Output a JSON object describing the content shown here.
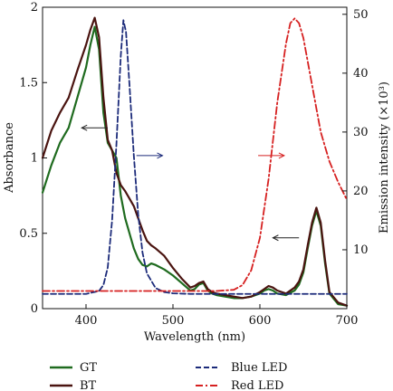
{
  "chart_data": {
    "type": "line",
    "title": "",
    "xlabel": "Wavelength (nm)",
    "ylabel_left": "Absorbance",
    "ylabel_right": "Emission intensity (×10³)",
    "xlim": [
      350,
      700
    ],
    "ylim_left": [
      0,
      2
    ],
    "ylim_right": [
      0,
      51.2
    ],
    "x_ticks": [
      400,
      500,
      600,
      700
    ],
    "y_left_ticks": [
      {
        "value": 0,
        "label": "0"
      },
      {
        "value": 0.5,
        "label": "0.5"
      },
      {
        "value": 1,
        "label": "1"
      },
      {
        "value": 1.5,
        "label": "1.5"
      },
      {
        "value": 2,
        "label": "2"
      }
    ],
    "y_right_ticks": [
      {
        "value": 10,
        "label": "10"
      },
      {
        "value": 20,
        "label": "20"
      },
      {
        "value": 30,
        "label": "30"
      },
      {
        "value": 40,
        "label": "40"
      },
      {
        "value": 50,
        "label": "50"
      }
    ],
    "legend_placement": "bottom",
    "grid": false,
    "series": [
      {
        "name": "GT",
        "axis": "left",
        "color": "#1f6b1f",
        "dash": "solid",
        "x": [
          350,
          360,
          370,
          380,
          390,
          400,
          405,
          410,
          415,
          420,
          425,
          430,
          435,
          440,
          445,
          450,
          455,
          460,
          465,
          470,
          475,
          480,
          490,
          500,
          510,
          520,
          525,
          530,
          535,
          540,
          545,
          550,
          560,
          570,
          580,
          590,
          600,
          605,
          610,
          615,
          620,
          630,
          640,
          645,
          650,
          655,
          660,
          665,
          670,
          675,
          680,
          690,
          700
        ],
        "y": [
          0.77,
          0.95,
          1.1,
          1.2,
          1.4,
          1.6,
          1.75,
          1.87,
          1.72,
          1.3,
          1.1,
          1.05,
          1.0,
          0.75,
          0.6,
          0.5,
          0.4,
          0.33,
          0.29,
          0.28,
          0.3,
          0.29,
          0.26,
          0.22,
          0.17,
          0.12,
          0.13,
          0.16,
          0.17,
          0.12,
          0.1,
          0.09,
          0.08,
          0.07,
          0.07,
          0.08,
          0.1,
          0.12,
          0.13,
          0.12,
          0.1,
          0.09,
          0.12,
          0.16,
          0.24,
          0.4,
          0.55,
          0.65,
          0.55,
          0.3,
          0.1,
          0.03,
          0.02
        ]
      },
      {
        "name": "BT",
        "axis": "left",
        "color": "#4a1410",
        "dash": "solid",
        "x": [
          350,
          360,
          370,
          380,
          390,
          400,
          405,
          410,
          415,
          420,
          425,
          430,
          435,
          440,
          445,
          450,
          455,
          460,
          465,
          470,
          475,
          480,
          490,
          500,
          510,
          520,
          525,
          530,
          535,
          540,
          545,
          550,
          560,
          570,
          580,
          590,
          600,
          605,
          610,
          615,
          620,
          630,
          640,
          645,
          650,
          655,
          660,
          665,
          670,
          675,
          680,
          690,
          700
        ],
        "y": [
          1.0,
          1.18,
          1.3,
          1.4,
          1.58,
          1.75,
          1.85,
          1.93,
          1.8,
          1.4,
          1.12,
          1.05,
          0.9,
          0.82,
          0.78,
          0.73,
          0.68,
          0.6,
          0.52,
          0.45,
          0.42,
          0.4,
          0.35,
          0.27,
          0.2,
          0.14,
          0.15,
          0.17,
          0.18,
          0.13,
          0.11,
          0.1,
          0.09,
          0.08,
          0.07,
          0.08,
          0.11,
          0.13,
          0.15,
          0.14,
          0.12,
          0.1,
          0.14,
          0.18,
          0.26,
          0.42,
          0.57,
          0.67,
          0.57,
          0.32,
          0.11,
          0.04,
          0.02
        ]
      },
      {
        "name": "Blue LED",
        "axis": "right",
        "color": "#1c2b7a",
        "dash": "dashed",
        "x": [
          350,
          400,
          415,
          420,
          425,
          430,
          435,
          440,
          443,
          446,
          450,
          455,
          460,
          465,
          470,
          480,
          490,
          500,
          520,
          550,
          600,
          650,
          700
        ],
        "y": [
          2.5,
          2.5,
          3,
          4,
          7,
          15,
          28,
          43,
          49,
          47,
          38,
          26,
          16,
          9.5,
          6,
          3.5,
          2.8,
          2.6,
          2.5,
          2.5,
          2.5,
          2.5,
          2.5
        ]
      },
      {
        "name": "Red LED",
        "axis": "right",
        "color": "#d62020",
        "dash": "dashdot",
        "x": [
          350,
          450,
          500,
          550,
          570,
          580,
          590,
          600,
          610,
          620,
          630,
          635,
          640,
          645,
          650,
          660,
          670,
          680,
          690,
          700
        ],
        "y": [
          3.0,
          3.0,
          3.0,
          3.0,
          3.2,
          4,
          6.5,
          12,
          22,
          35,
          45,
          48.5,
          49.3,
          48.5,
          46,
          38,
          30,
          25,
          21.5,
          18.5
        ]
      }
    ],
    "annotations": [
      {
        "type": "arrow",
        "direction": "left",
        "axis": "left",
        "color": "#222222",
        "x_from": 425,
        "x_to": 395,
        "y": 1.2
      },
      {
        "type": "arrow",
        "direction": "right",
        "axis": "right",
        "color": "#1c2b7a",
        "x_from": 458,
        "x_to": 488,
        "y": 26
      },
      {
        "type": "arrow",
        "direction": "right",
        "axis": "right",
        "color": "#d62020",
        "x_from": 598,
        "x_to": 628,
        "y": 26
      },
      {
        "type": "arrow",
        "direction": "left",
        "axis": "left",
        "color": "#222222",
        "x_from": 645,
        "x_to": 615,
        "y": 0.47
      }
    ]
  }
}
